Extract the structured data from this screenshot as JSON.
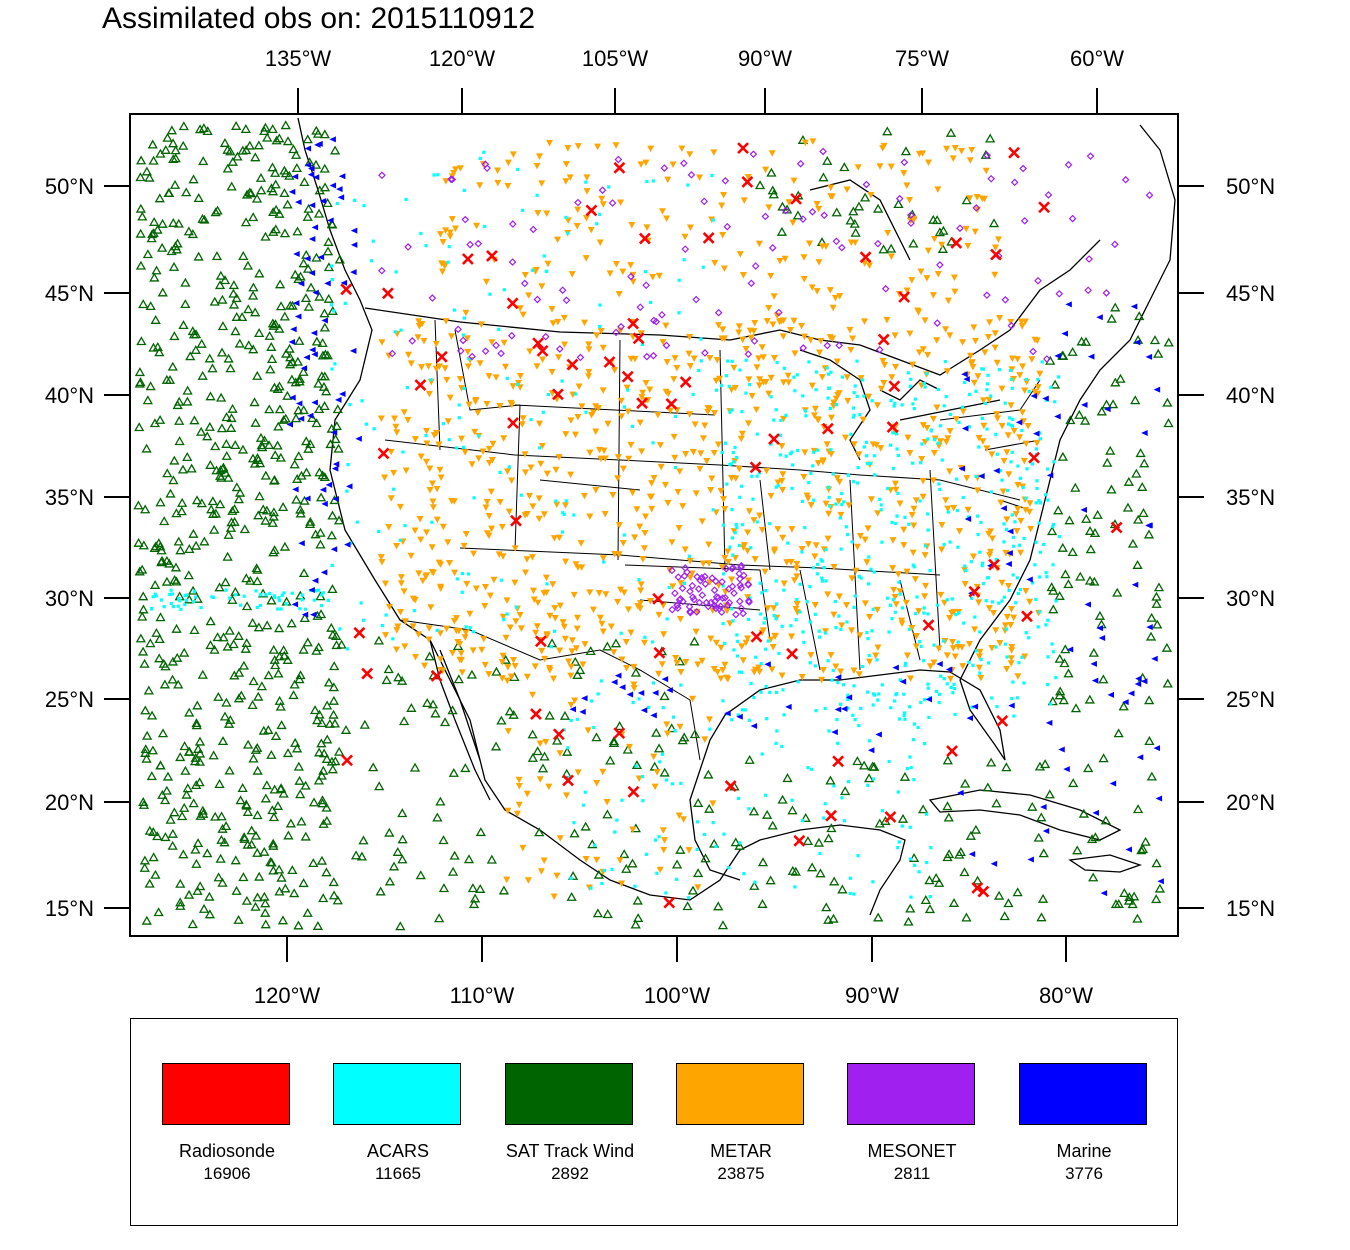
{
  "title": "Assimilated obs on: 2015110912",
  "map": {
    "top_axis_labels": [
      "135°W",
      "120°W",
      "105°W",
      "90°W",
      "75°W",
      "60°W"
    ],
    "bottom_axis_labels": [
      "120°W",
      "110°W",
      "100°W",
      "90°W",
      "80°W"
    ],
    "left_axis_labels": [
      "50°N",
      "45°N",
      "40°N",
      "35°N",
      "30°N",
      "25°N",
      "20°N",
      "15°N"
    ],
    "right_axis_labels": [
      "50°N",
      "45°N",
      "40°N",
      "35°N",
      "30°N",
      "25°N",
      "20°N",
      "15°N"
    ]
  },
  "legend": [
    {
      "name": "Radiosonde",
      "count": "16906",
      "color": "#ff0000",
      "symbol": "x-mark"
    },
    {
      "name": "ACARS",
      "count": "11665",
      "color": "#00ffff",
      "symbol": "square-dot"
    },
    {
      "name": "SAT Track Wind",
      "count": "2892",
      "color": "#006400",
      "symbol": "open-triangle-up"
    },
    {
      "name": "METAR",
      "count": "23875",
      "color": "#ffa500",
      "symbol": "triangle-down"
    },
    {
      "name": "MESONET",
      "count": "2811",
      "color": "#a020f0",
      "symbol": "diamond"
    },
    {
      "name": "Marine",
      "count": "3776",
      "color": "#0000ff",
      "symbol": "triangle-left"
    }
  ]
}
